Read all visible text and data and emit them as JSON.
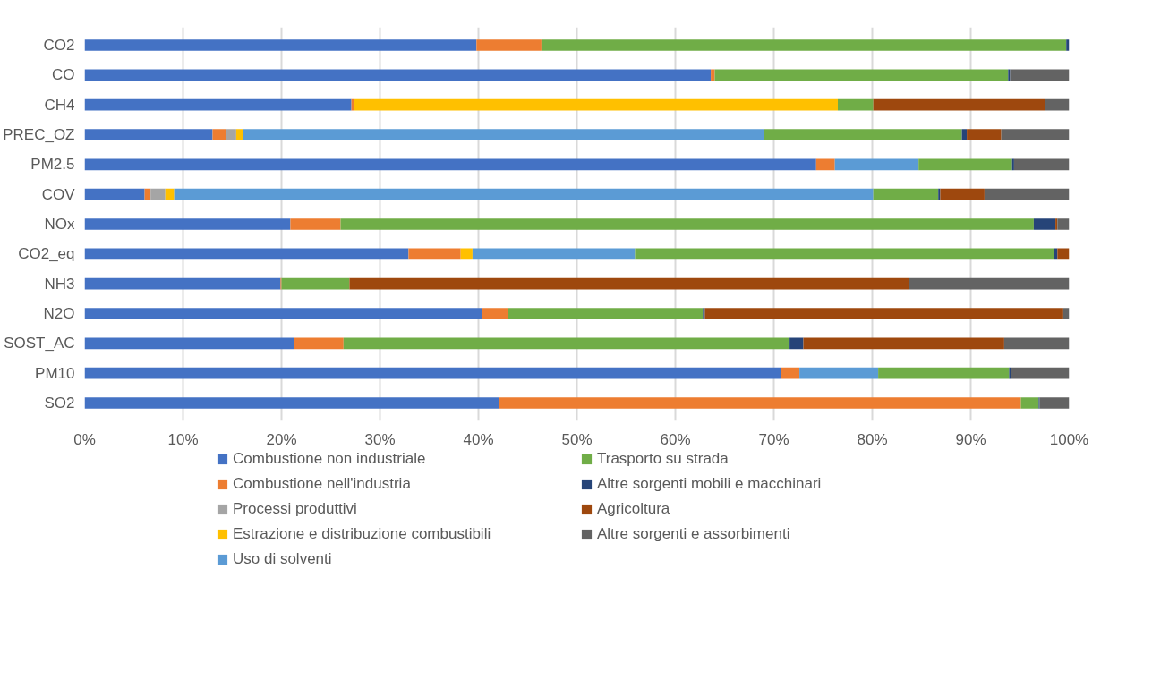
{
  "chart_data": {
    "type": "bar",
    "orientation": "horizontal",
    "stacked": true,
    "categories": [
      "CO2",
      "CO",
      "CH4",
      "PREC_OZ",
      "PM2.5",
      "COV",
      "NOx",
      "CO2_eq",
      "NH3",
      "N2O",
      "SOST_AC",
      "PM10",
      "SO2"
    ],
    "series": [
      {
        "name": "Combustione non industriale",
        "color": "#4472c4",
        "values": [
          39.8,
          63.6,
          27.1,
          13.0,
          74.3,
          6.1,
          20.9,
          32.9,
          19.9,
          40.4,
          21.3,
          70.7,
          42.1
        ]
      },
      {
        "name": "Combustione nell'industria",
        "color": "#ed7d31",
        "values": [
          6.6,
          0.4,
          0.3,
          1.4,
          1.9,
          0.6,
          5.1,
          5.3,
          0.1,
          2.6,
          5.0,
          1.9,
          53.0
        ]
      },
      {
        "name": "Processi produttivi",
        "color": "#a5a5a5",
        "values": [
          null,
          null,
          null,
          1.0,
          null,
          1.5,
          null,
          null,
          null,
          null,
          null,
          null,
          null
        ]
      },
      {
        "name": "Estrazione e distribuzione combustibili",
        "color": "#ffc000",
        "values": [
          null,
          null,
          49.1,
          0.7,
          null,
          0.9,
          null,
          1.2,
          null,
          null,
          null,
          null,
          null
        ]
      },
      {
        "name": "Uso di solventi",
        "color": "#5b9bd5",
        "values": [
          null,
          null,
          null,
          52.9,
          8.5,
          71.0,
          null,
          16.5,
          null,
          null,
          null,
          8.0,
          null
        ]
      },
      {
        "name": "Trasporto su strada",
        "color": "#70ad47",
        "values": [
          53.3,
          29.8,
          3.6,
          20.1,
          9.5,
          6.6,
          70.4,
          42.6,
          6.9,
          19.8,
          45.3,
          13.3,
          1.8
        ]
      },
      {
        "name": "Altre sorgenti mobili e macchinari",
        "color": "#264478",
        "values": [
          0.3,
          0.2,
          null,
          0.5,
          0.2,
          0.2,
          2.2,
          0.3,
          null,
          0.2,
          1.4,
          0.2,
          0.1
        ]
      },
      {
        "name": "Agricoltura",
        "color": "#9e480e",
        "values": [
          null,
          null,
          17.4,
          3.5,
          null,
          4.5,
          0.2,
          1.2,
          56.8,
          36.4,
          20.4,
          null,
          null
        ]
      },
      {
        "name": "Altre sorgenti e assorbimenti",
        "color": "#636363",
        "values": [
          null,
          6.0,
          2.5,
          6.9,
          5.6,
          8.6,
          1.2,
          null,
          16.3,
          0.6,
          6.6,
          5.9,
          3.0
        ]
      }
    ],
    "xlim": [
      0,
      100
    ],
    "xticks": [
      {
        "value": 0,
        "label": "0%"
      },
      {
        "value": 10,
        "label": "10%"
      },
      {
        "value": 20,
        "label": "20%"
      },
      {
        "value": 30,
        "label": "30%"
      },
      {
        "value": 40,
        "label": "40%"
      },
      {
        "value": 50,
        "label": "50%"
      },
      {
        "value": 60,
        "label": "60%"
      },
      {
        "value": 70,
        "label": "70%"
      },
      {
        "value": 80,
        "label": "80%"
      },
      {
        "value": 90,
        "label": "90%"
      },
      {
        "value": 100,
        "label": "100%"
      }
    ],
    "grid": "x",
    "legend": "bottom"
  }
}
